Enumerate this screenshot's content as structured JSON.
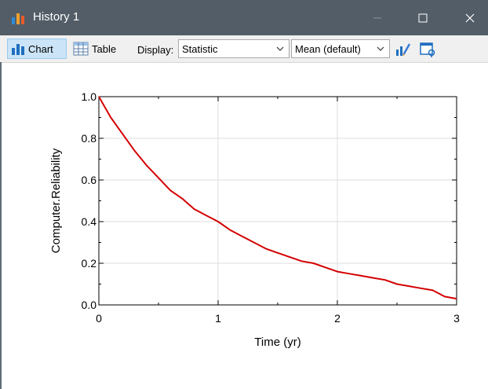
{
  "window": {
    "title": "History 1",
    "minimize_icon": "minimize-icon",
    "maximize_icon": "maximize-icon",
    "close_icon": "close-icon"
  },
  "toolbar": {
    "chart_label": "Chart",
    "table_label": "Table",
    "display_label": "Display:",
    "display_value": "Statistic",
    "statistic_value": "Mean (default)",
    "edit_icon": "edit-chart-icon",
    "properties_icon": "properties-icon"
  },
  "colors": {
    "titlebar": "#535d67",
    "series": "#d40000",
    "toolbar": "#f0f0f0",
    "selected_button": "#cce4f7"
  },
  "chart_data": {
    "type": "line",
    "xlabel": "Time (yr)",
    "ylabel": "Computer.Reliability",
    "xlim": [
      0,
      3
    ],
    "ylim": [
      0,
      1
    ],
    "x_ticks": [
      "0",
      "1",
      "2",
      "3"
    ],
    "y_ticks": [
      "0.0",
      "0.2",
      "0.4",
      "0.6",
      "0.8",
      "1.0"
    ],
    "grid": true,
    "series": [
      {
        "color": "#d40000",
        "x": [
          0,
          0.1,
          0.2,
          0.3,
          0.4,
          0.5,
          0.6,
          0.7,
          0.8,
          0.9,
          1.0,
          1.1,
          1.2,
          1.3,
          1.4,
          1.5,
          1.6,
          1.7,
          1.8,
          1.9,
          2.0,
          2.1,
          2.2,
          2.3,
          2.4,
          2.5,
          2.6,
          2.7,
          2.8,
          2.9,
          3.0
        ],
        "y": [
          1.0,
          0.9,
          0.82,
          0.74,
          0.67,
          0.61,
          0.55,
          0.51,
          0.46,
          0.43,
          0.4,
          0.36,
          0.33,
          0.3,
          0.27,
          0.25,
          0.23,
          0.21,
          0.2,
          0.18,
          0.16,
          0.15,
          0.14,
          0.13,
          0.12,
          0.1,
          0.09,
          0.08,
          0.07,
          0.04,
          0.03
        ]
      }
    ]
  }
}
